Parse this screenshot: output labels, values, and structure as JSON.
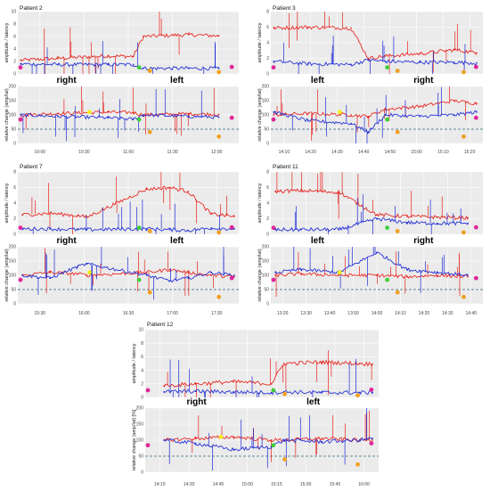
{
  "colors": {
    "amplitude": "#e8211a",
    "latency": "#1d2bd6",
    "marker_pink": "#e0259a",
    "marker_orange": "#f0a020",
    "marker_yellow": "#f2ee1a",
    "marker_green": "#3fcf3a",
    "reference": "#2a5f7a"
  },
  "chart_data": [
    {
      "type": "line",
      "title": "Patient 2",
      "ylabel_top": "amplitude / latency",
      "ylabel_bottom": "relative change (amp/lat)",
      "sides": [
        "right",
        "left"
      ],
      "x_ticks": [
        "10:00",
        "10:30",
        "11:00",
        "11:30",
        "12:00"
      ],
      "x_range": [
        9.8,
        12.0
      ],
      "top": {
        "ylim": [
          0,
          10
        ],
        "y_ticks": [
          "0",
          "2",
          "4",
          "6",
          "8",
          "10"
        ],
        "series": [
          {
            "key": "amplitude",
            "x": [
              9.83,
              10.2,
              10.7,
              10.95,
              11.05,
              11.5,
              11.8
            ],
            "y": [
              2.2,
              2.5,
              2.9,
              2.8,
              6.0,
              6.3,
              6.1
            ]
          },
          {
            "key": "latency",
            "x": [
              9.83,
              10.2,
              10.7,
              10.95,
              11.05,
              11.5,
              11.8
            ],
            "y": [
              1.6,
              1.5,
              1.5,
              1.5,
              0.9,
              0.9,
              0.9
            ]
          }
        ]
      },
      "bottom": {
        "ylim": [
          0,
          200
        ],
        "y_ticks": [
          "0",
          "50",
          "100",
          "150",
          "200"
        ],
        "reference": 50,
        "series": [
          {
            "key": "amplitude",
            "x": [
              9.83,
              10.2,
              10.7,
              10.95,
              11.05,
              11.5,
              11.8
            ],
            "y": [
              100,
              105,
              110,
              108,
              100,
              104,
              102
            ]
          },
          {
            "key": "latency",
            "x": [
              9.83,
              10.2,
              10.7,
              10.95,
              11.05,
              11.5,
              11.8
            ],
            "y": [
              100,
              95,
              90,
              85,
              100,
              95,
              92
            ]
          }
        ]
      }
    },
    {
      "type": "line",
      "title": "Patient 3",
      "ylabel_top": "amplitude / latency",
      "ylabel_bottom": "relative change (amp/lat)",
      "sides": [
        "left",
        "right"
      ],
      "x_ticks": [
        "14:10",
        "14:20",
        "14:30",
        "14:40",
        "14:50",
        "15:00",
        "15:10",
        "15:20"
      ],
      "x_range": [
        14.133,
        15.367
      ],
      "top": {
        "ylim": [
          0,
          8
        ],
        "y_ticks": [
          "0",
          "2",
          "4",
          "6",
          "8"
        ],
        "series": [
          {
            "key": "amplitude",
            "x": [
              14.15,
              14.35,
              14.6,
              14.7,
              14.8,
              15.0,
              15.2,
              15.33
            ],
            "y": [
              5.9,
              6.0,
              5.9,
              2.0,
              2.3,
              2.6,
              3.1,
              2.7
            ]
          },
          {
            "key": "latency",
            "x": [
              14.15,
              14.35,
              14.6,
              14.7,
              14.8,
              15.0,
              15.2,
              15.33
            ],
            "y": [
              1.6,
              1.3,
              1.2,
              1.8,
              1.6,
              1.5,
              1.5,
              1.4
            ]
          }
        ]
      },
      "bottom": {
        "ylim": [
          0,
          200
        ],
        "y_ticks": [
          "0",
          "50",
          "100",
          "150",
          "200"
        ],
        "reference": 50,
        "series": [
          {
            "key": "amplitude",
            "x": [
              14.15,
              14.35,
              14.6,
              14.7,
              14.8,
              15.0,
              15.2,
              15.33
            ],
            "y": [
              100,
              105,
              100,
              95,
              120,
              130,
              150,
              140
            ]
          },
          {
            "key": "latency",
            "x": [
              14.15,
              14.35,
              14.6,
              14.7,
              14.8,
              15.0,
              15.2,
              15.33
            ],
            "y": [
              110,
              80,
              70,
              40,
              100,
              95,
              100,
              110
            ]
          }
        ]
      }
    },
    {
      "type": "line",
      "title": "Patient 7",
      "ylabel_top": "amplitude / latency",
      "ylabel_bottom": "relative change (amp/lat)",
      "sides": [
        "right",
        "left"
      ],
      "x_ticks": [
        "15:30",
        "16:00",
        "16:30",
        "17:00",
        "17:30"
      ],
      "x_range": [
        15.35,
        17.75
      ],
      "top": {
        "ylim": [
          0,
          8
        ],
        "y_ticks": [
          "0",
          "2",
          "4",
          "6",
          "8"
        ],
        "series": [
          {
            "key": "amplitude",
            "x": [
              15.4,
              15.7,
              16.0,
              16.1,
              16.75,
              17.0,
              17.2,
              17.45,
              17.7
            ],
            "y": [
              2.5,
              2.7,
              2.4,
              2.2,
              5.8,
              6.0,
              5.5,
              2.6,
              2.3
            ]
          },
          {
            "key": "latency",
            "x": [
              15.4,
              15.7,
              16.0,
              16.1,
              16.75,
              17.0,
              17.2,
              17.45,
              17.7
            ],
            "y": [
              0.7,
              0.7,
              0.6,
              0.6,
              0.7,
              0.6,
              0.5,
              0.8,
              0.7
            ]
          }
        ]
      },
      "bottom": {
        "ylim": [
          0,
          200
        ],
        "y_ticks": [
          "0",
          "50",
          "100",
          "150",
          "200"
        ],
        "reference": 50,
        "series": [
          {
            "key": "amplitude",
            "x": [
              15.4,
              15.7,
              16.0,
              16.1,
              16.75,
              17.0,
              17.2,
              17.45,
              17.7
            ],
            "y": [
              100,
              110,
              105,
              100,
              110,
              120,
              110,
              100,
              95
            ]
          },
          {
            "key": "latency",
            "x": [
              15.4,
              15.7,
              16.0,
              16.1,
              16.75,
              17.0,
              17.2,
              17.45,
              17.7
            ],
            "y": [
              100,
              90,
              130,
              140,
              100,
              80,
              90,
              110,
              100
            ]
          }
        ]
      }
    },
    {
      "type": "line",
      "title": "Patient 11",
      "ylabel_top": "amplitude / latency",
      "ylabel_bottom": "relative change (amp/lat)",
      "sides": [
        "left",
        "right"
      ],
      "x_ticks": [
        "13:20",
        "13:30",
        "13:40",
        "13:50",
        "14:00",
        "14:10",
        "14:20",
        "14:30",
        "14:40"
      ],
      "x_range": [
        13.3,
        14.7
      ],
      "top": {
        "ylim": [
          0,
          8
        ],
        "y_ticks": [
          "0",
          "2",
          "4",
          "6",
          "8"
        ],
        "series": [
          {
            "key": "amplitude",
            "x": [
              13.33,
              13.5,
              13.75,
              14.0,
              14.2,
              14.4,
              14.6
            ],
            "y": [
              5.5,
              5.6,
              5.4,
              2.5,
              2.3,
              2.2,
              2.1
            ]
          },
          {
            "key": "latency",
            "x": [
              13.33,
              13.5,
              13.75,
              14.0,
              14.2,
              14.4,
              14.6
            ],
            "y": [
              0.6,
              0.6,
              0.6,
              2.0,
              1.5,
              1.4,
              1.4
            ]
          }
        ]
      },
      "bottom": {
        "ylim": [
          0,
          200
        ],
        "y_ticks": [
          "0",
          "50",
          "100",
          "150",
          "200"
        ],
        "reference": 50,
        "series": [
          {
            "key": "amplitude",
            "x": [
              13.33,
              13.5,
              13.75,
              14.0,
              14.2,
              14.4,
              14.6
            ],
            "y": [
              100,
              105,
              100,
              100,
              95,
              100,
              95
            ]
          },
          {
            "key": "latency",
            "x": [
              13.33,
              13.5,
              13.75,
              14.0,
              14.2,
              14.4,
              14.6
            ],
            "y": [
              110,
              120,
              110,
              180,
              120,
              110,
              100
            ]
          }
        ]
      }
    },
    {
      "type": "line",
      "title": "Patient 12",
      "ylabel_top": "amplitude / latency",
      "ylabel_bottom": "relative change (amp/lat) [%]",
      "sides": [
        "right",
        "left"
      ],
      "x_ticks": [
        "14:15",
        "14:30",
        "14:45",
        "15:00",
        "15:15",
        "15:30",
        "15:45",
        "16:00"
      ],
      "x_range": [
        14.2,
        16.05
      ],
      "top": {
        "ylim": [
          0,
          10
        ],
        "y_ticks": [
          "0",
          "2",
          "4",
          "6",
          "8",
          "10"
        ],
        "series": [
          {
            "key": "amplitude",
            "x": [
              14.35,
              14.6,
              14.9,
              15.2,
              15.3,
              15.6,
              15.9,
              16.0
            ],
            "y": [
              1.7,
              2.0,
              2.3,
              2.0,
              5.0,
              5.2,
              5.0,
              4.9
            ]
          },
          {
            "key": "latency",
            "x": [
              14.35,
              14.6,
              14.9,
              15.2,
              15.3,
              15.6,
              15.9,
              16.0
            ],
            "y": [
              0.8,
              0.9,
              0.8,
              0.7,
              0.8,
              0.7,
              0.7,
              0.7
            ]
          }
        ]
      },
      "bottom": {
        "ylim": [
          0,
          200
        ],
        "y_ticks": [
          "0",
          "50",
          "100",
          "150",
          "200"
        ],
        "reference": 50,
        "series": [
          {
            "key": "amplitude",
            "x": [
              14.35,
              14.6,
              14.9,
              15.2,
              15.3,
              15.6,
              15.9,
              16.0
            ],
            "y": [
              100,
              105,
              110,
              100,
              100,
              105,
              100,
              100
            ]
          },
          {
            "key": "latency",
            "x": [
              14.35,
              14.6,
              14.9,
              15.2,
              15.3,
              15.6,
              15.9,
              16.0
            ],
            "y": [
              100,
              90,
              70,
              80,
              100,
              95,
              100,
              105
            ]
          }
        ]
      }
    }
  ]
}
